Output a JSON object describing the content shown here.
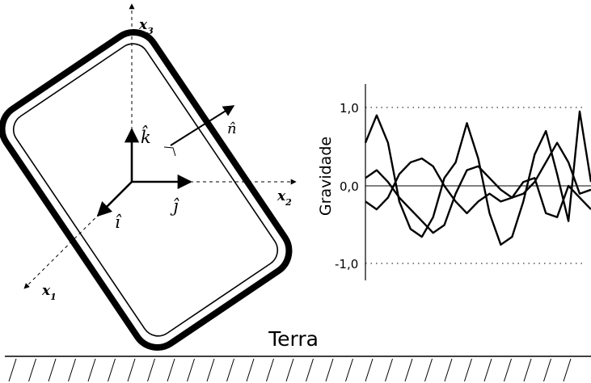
{
  "frame": {
    "axes": {
      "x1": {
        "base": "x",
        "sub": "1"
      },
      "x2": {
        "base": "x",
        "sub": "2"
      },
      "x3": {
        "base": "x",
        "sub": "3"
      }
    },
    "unit_vectors": {
      "i": "î",
      "j": "ĵ",
      "k": "k̂",
      "n": "n̂"
    }
  },
  "ground": {
    "label": "Terra"
  },
  "chart_data": {
    "type": "line",
    "ylabel": "Gravidade",
    "xlabel": "",
    "yticks": [
      "1,0",
      "0,0",
      "-1,0"
    ],
    "ylim": [
      -1.2,
      1.2
    ],
    "grid": "dotted lines at -1,0 and 1,0; solid line at 0,0",
    "x": [
      0,
      0.05,
      0.1,
      0.15,
      0.2,
      0.25,
      0.3,
      0.35,
      0.4,
      0.45,
      0.5,
      0.55,
      0.6,
      0.65,
      0.7,
      0.75,
      0.8,
      0.85,
      0.9,
      0.95,
      1.0
    ],
    "series": [
      {
        "values": [
          0.55,
          0.9,
          0.55,
          -0.2,
          -0.55,
          -0.65,
          -0.4,
          0.1,
          0.3,
          0.8,
          0.35,
          -0.35,
          -0.75,
          -0.65,
          -0.2,
          0.4,
          0.7,
          0.15,
          -0.45,
          0.95,
          0.05
        ]
      },
      {
        "values": [
          0.1,
          0.2,
          0.05,
          -0.15,
          -0.3,
          -0.45,
          -0.6,
          -0.5,
          -0.1,
          0.2,
          0.25,
          0.1,
          -0.05,
          -0.15,
          -0.1,
          0.05,
          0.3,
          0.55,
          0.3,
          -0.1,
          -0.05
        ]
      },
      {
        "values": [
          -0.2,
          -0.3,
          -0.15,
          0.15,
          0.3,
          0.35,
          0.25,
          0.0,
          -0.2,
          -0.35,
          -0.2,
          -0.1,
          -0.2,
          -0.15,
          0.05,
          0.1,
          -0.35,
          -0.4,
          0.0,
          -0.15,
          -0.3
        ]
      }
    ]
  }
}
